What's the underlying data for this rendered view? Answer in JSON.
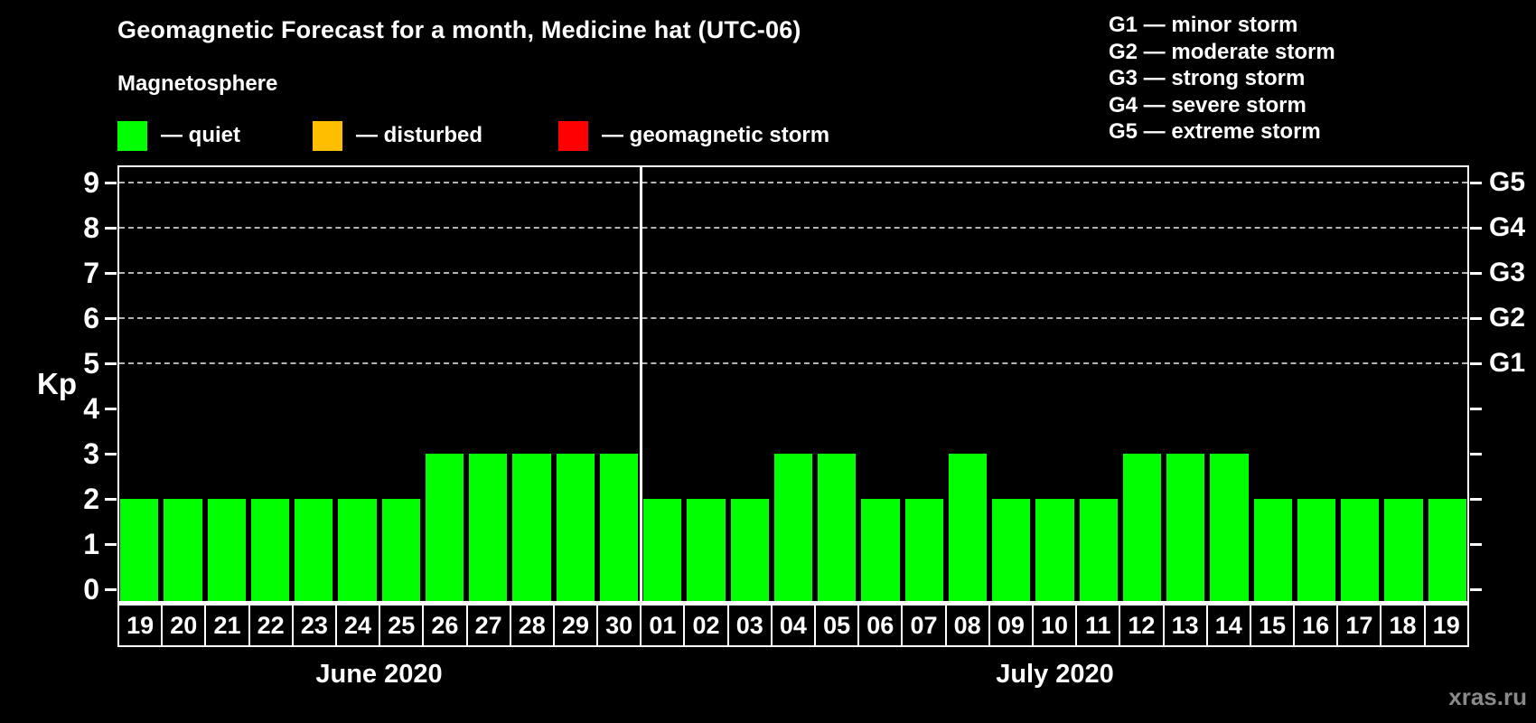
{
  "header": {
    "title": "Geomagnetic Forecast for a month, Medicine hat (UTC-06)",
    "subtitle": "Magnetosphere"
  },
  "legend": {
    "items": [
      {
        "name": "quiet",
        "label": "— quiet",
        "color": "#00FF00"
      },
      {
        "name": "disturbed",
        "label": "— disturbed",
        "color": "#FFBE00"
      },
      {
        "name": "geomagnetic-storm",
        "label": "— geomagnetic storm",
        "color": "#FF0000"
      }
    ]
  },
  "storm_scale_legend": {
    "lines": [
      "G1 — minor storm",
      "G2 — moderate storm",
      "G3 — strong storm",
      "G4 — severe storm",
      "G5 — extreme storm"
    ]
  },
  "watermark": "xras.ru",
  "chart_data": {
    "type": "bar",
    "title": "Geomagnetic Forecast for a month, Medicine hat (UTC-06)",
    "ylabel": "Kp",
    "ylim": [
      0,
      9
    ],
    "yticks": [
      0,
      1,
      2,
      3,
      4,
      5,
      6,
      7,
      8,
      9
    ],
    "gridlines_at": [
      5,
      6,
      7,
      8,
      9
    ],
    "grid": "horizontal dashed lines only at storm levels Kp 5-9",
    "legend_position": "top-left",
    "bar_color": "#00FF00",
    "right_axis_labels": [
      {
        "kp": 5,
        "label": "G1"
      },
      {
        "kp": 6,
        "label": "G2"
      },
      {
        "kp": 7,
        "label": "G3"
      },
      {
        "kp": 8,
        "label": "G4"
      },
      {
        "kp": 9,
        "label": "G5"
      }
    ],
    "months": [
      {
        "label": "June 2020",
        "days": [
          "19",
          "20",
          "21",
          "22",
          "23",
          "24",
          "25",
          "26",
          "27",
          "28",
          "29",
          "30"
        ],
        "values": [
          2,
          2,
          2,
          2,
          2,
          2,
          2,
          3,
          3,
          3,
          3,
          3
        ]
      },
      {
        "label": "July 2020",
        "days": [
          "01",
          "02",
          "03",
          "04",
          "05",
          "06",
          "07",
          "08",
          "09",
          "10",
          "11",
          "12",
          "13",
          "14",
          "15",
          "16",
          "17",
          "18",
          "19"
        ],
        "values": [
          2,
          2,
          2,
          3,
          3,
          2,
          2,
          3,
          2,
          2,
          2,
          3,
          3,
          3,
          2,
          2,
          2,
          2,
          2
        ]
      }
    ]
  }
}
